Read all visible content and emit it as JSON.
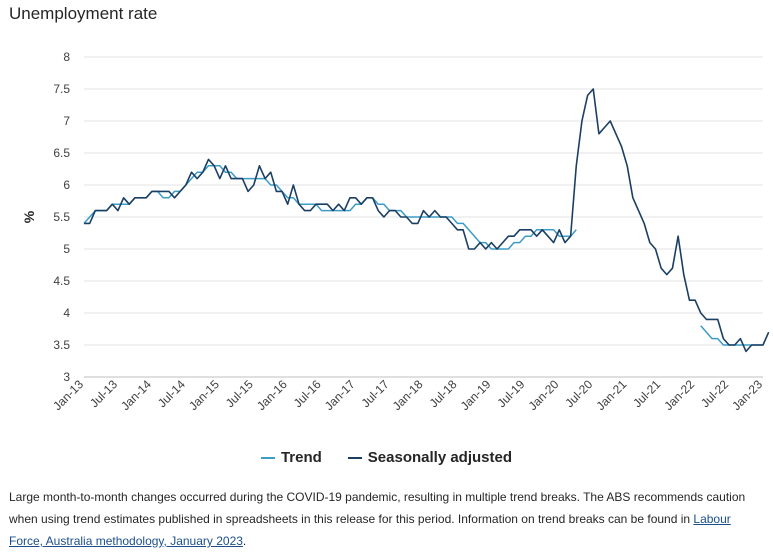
{
  "title": "Unemployment rate",
  "legend": [
    {
      "label": "Trend",
      "color": "#3b9cc8"
    },
    {
      "label": "Seasonally adjusted",
      "color": "#1b3f63"
    }
  ],
  "note": {
    "text": "Large month-to-month changes occurred during the COVID-19 pandemic, resulting in multiple trend breaks. The ABS recommends caution when using trend estimates published in spreadsheets in this release for this period. Information on trend breaks can be found in ",
    "link_text": "Labour Force, Australia methodology, January 2023",
    "suffix": "."
  },
  "chart_data": {
    "type": "line",
    "title": "Unemployment rate",
    "xlabel": "",
    "ylabel": "%",
    "ylim": [
      3,
      8
    ],
    "yticks": [
      "3",
      "3.5",
      "4",
      "4.5",
      "5",
      "5.5",
      "6",
      "6.5",
      "7",
      "7.5",
      "8"
    ],
    "x_start": "Jan-13",
    "xtick_labels": [
      "Jan-13",
      "Jul-13",
      "Jan-14",
      "Jul-14",
      "Jan-15",
      "Jul-15",
      "Jan-16",
      "Jul-16",
      "Jan-17",
      "Jul-17",
      "Jan-18",
      "Jul-18",
      "Jan-19",
      "Jul-19",
      "Jan-20",
      "Jul-20",
      "Jan-21",
      "Jul-21",
      "Jan-22",
      "Jul-22",
      "Jan-23"
    ],
    "grid": "horizontal",
    "legend_position": "bottom",
    "series": [
      {
        "name": "Trend",
        "color": "#3b9cc8",
        "segments": [
          {
            "start_month": "Jan-13",
            "values": [
              5.4,
              5.5,
              5.6,
              5.6,
              5.6,
              5.7,
              5.7,
              5.7,
              5.7,
              5.8,
              5.8,
              5.8,
              5.9,
              5.9,
              5.8,
              5.8,
              5.9,
              5.9,
              6.0,
              6.1,
              6.2,
              6.2,
              6.3,
              6.3,
              6.3,
              6.2,
              6.2,
              6.1,
              6.1,
              6.1,
              6.1,
              6.1,
              6.1,
              6.0,
              6.0,
              5.9,
              5.8,
              5.8,
              5.7,
              5.7,
              5.7,
              5.7,
              5.6,
              5.6,
              5.6,
              5.6,
              5.6,
              5.6,
              5.7,
              5.7,
              5.8,
              5.8,
              5.7,
              5.7,
              5.6,
              5.6,
              5.6,
              5.5,
              5.5,
              5.5,
              5.5,
              5.5,
              5.5,
              5.5,
              5.5,
              5.5,
              5.4,
              5.4,
              5.3,
              5.2,
              5.1,
              5.1,
              5.0,
              5.0,
              5.0,
              5.0,
              5.1,
              5.1,
              5.2,
              5.2,
              5.3,
              5.3,
              5.3,
              5.3,
              5.2,
              5.2,
              5.2,
              5.3
            ]
          },
          {
            "start_month": "Feb-22",
            "values": [
              3.8,
              3.7,
              3.6,
              3.6,
              3.5,
              3.5,
              3.5,
              3.5,
              3.5,
              3.5,
              3.5,
              3.5
            ]
          }
        ]
      },
      {
        "name": "Seasonally adjusted",
        "color": "#1b3f63",
        "segments": [
          {
            "start_month": "Jan-13",
            "values": [
              5.4,
              5.4,
              5.6,
              5.6,
              5.6,
              5.7,
              5.6,
              5.8,
              5.7,
              5.8,
              5.8,
              5.8,
              5.9,
              5.9,
              5.9,
              5.9,
              5.8,
              5.9,
              6.0,
              6.2,
              6.1,
              6.2,
              6.4,
              6.3,
              6.1,
              6.3,
              6.1,
              6.1,
              6.1,
              5.9,
              6.0,
              6.3,
              6.1,
              6.2,
              5.9,
              5.9,
              5.7,
              6.0,
              5.7,
              5.6,
              5.6,
              5.7,
              5.7,
              5.7,
              5.6,
              5.7,
              5.6,
              5.8,
              5.8,
              5.7,
              5.8,
              5.8,
              5.6,
              5.5,
              5.6,
              5.6,
              5.5,
              5.5,
              5.4,
              5.4,
              5.6,
              5.5,
              5.6,
              5.5,
              5.5,
              5.4,
              5.3,
              5.3,
              5.0,
              5.0,
              5.1,
              5.0,
              5.1,
              5.0,
              5.1,
              5.2,
              5.2,
              5.3,
              5.3,
              5.3,
              5.2,
              5.3,
              5.2,
              5.1,
              5.3,
              5.1,
              5.2,
              6.3,
              7.0,
              7.4,
              7.5,
              6.8,
              6.9,
              7.0,
              6.8,
              6.6,
              6.3,
              5.8,
              5.6,
              5.4,
              5.1,
              5.0,
              4.7,
              4.6,
              4.7,
              5.2,
              4.6,
              4.2,
              4.2,
              4.0,
              3.9,
              3.9,
              3.9,
              3.6,
              3.5,
              3.5,
              3.6,
              3.4,
              3.5,
              3.5,
              3.5,
              3.7
            ]
          }
        ]
      }
    ]
  }
}
